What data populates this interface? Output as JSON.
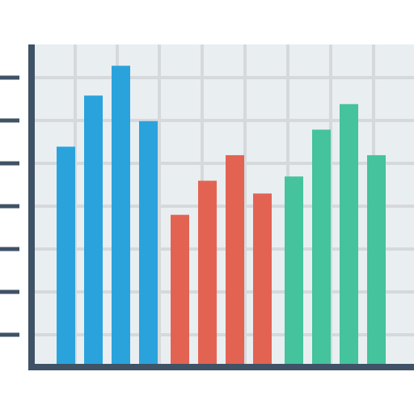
{
  "chart_data": {
    "type": "bar",
    "title": "",
    "xlabel": "",
    "ylabel": "",
    "ylim": [
      0,
      7.5
    ],
    "grid": true,
    "legend": "none",
    "groups": [
      {
        "color": "#2aa3dd",
        "values": [
          5.1,
          6.3,
          7.0,
          5.7
        ]
      },
      {
        "color": "#e36352",
        "values": [
          3.5,
          4.3,
          4.9,
          4.0
        ]
      },
      {
        "color": "#44c39d",
        "values": [
          4.4,
          5.5,
          6.1,
          4.9
        ]
      }
    ]
  },
  "colors": {
    "background": "#e9eef1",
    "grid": "#d6d9dc",
    "axis": "#3f5266",
    "tick": "#3f5266"
  }
}
